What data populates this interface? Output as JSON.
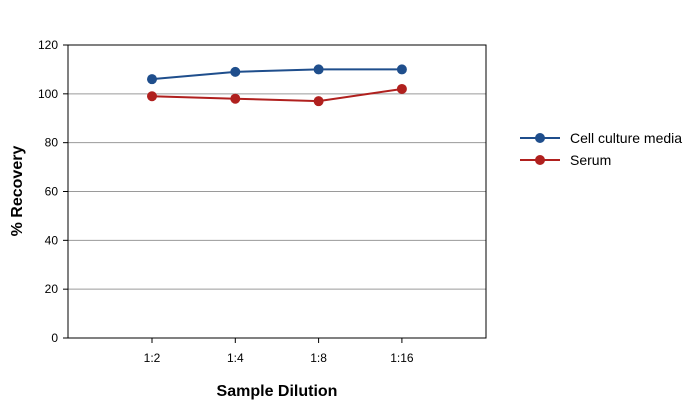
{
  "chart_data": {
    "type": "line",
    "title": "",
    "xlabel": "Sample Dilution",
    "ylabel": "% Recovery",
    "categories": [
      "1:2",
      "1:4",
      "1:8",
      "1:16"
    ],
    "ylim": [
      0,
      120
    ],
    "yticks": [
      0,
      20,
      40,
      60,
      80,
      100,
      120
    ],
    "grid": true,
    "legend_position": "right",
    "series": [
      {
        "name": "Cell culture media",
        "color": "#1f4e8c",
        "values": [
          106,
          109,
          110,
          110
        ]
      },
      {
        "name": "Serum",
        "color": "#b0201e",
        "values": [
          99,
          98,
          97,
          102
        ]
      }
    ]
  }
}
